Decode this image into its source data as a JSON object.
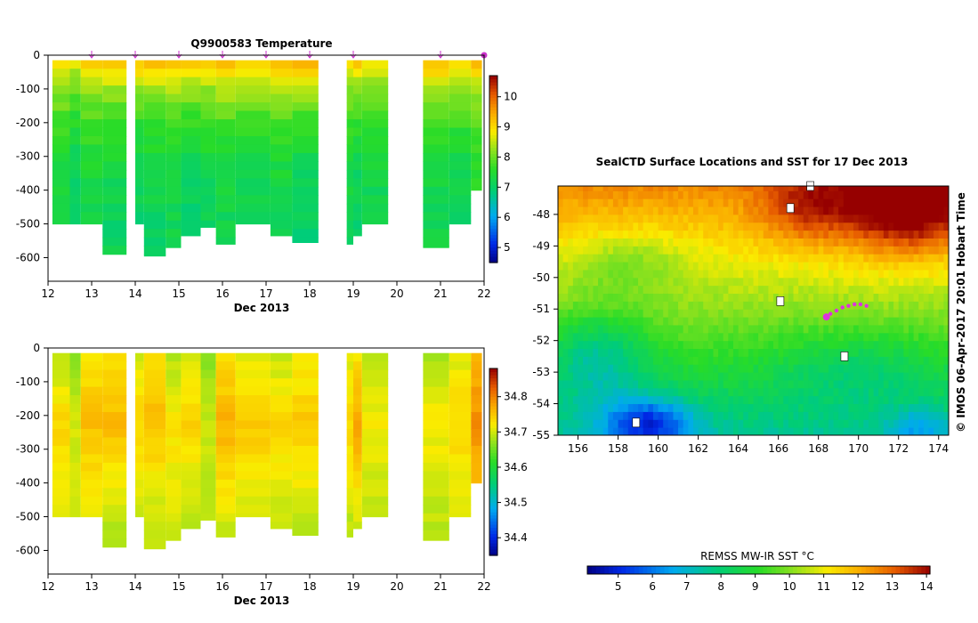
{
  "chart_data": [
    {
      "type": "heatmap",
      "title": "Q9900583  Temperature",
      "xlabel": "Dec 2013",
      "ylabel": "",
      "xlim": [
        12,
        22
      ],
      "ylim": [
        -670,
        0
      ],
      "x_ticks": [
        12,
        13,
        14,
        15,
        16,
        17,
        18,
        19,
        20,
        21,
        22
      ],
      "x_tick_labels": [
        "12",
        "13",
        "14",
        "15",
        "16",
        "17",
        "18",
        "19",
        "20",
        "21",
        "22"
      ],
      "y_ticks": [
        0,
        -100,
        -200,
        -300,
        -400,
        -500,
        -600
      ],
      "y_tick_labels": [
        "0",
        "-100",
        "-200",
        "-300",
        "-400",
        "-500",
        "-600"
      ],
      "colorbar": {
        "min": 4.5,
        "max": 10.7,
        "ticks": [
          5,
          6,
          7,
          8,
          9,
          10
        ],
        "tick_labels": [
          "5",
          "6",
          "7",
          "8",
          "9",
          "10"
        ]
      },
      "surface_markers_x": [
        13,
        14,
        15,
        16,
        17,
        18,
        19,
        21,
        22
      ],
      "marker_color": "#cc33cc",
      "grid": false,
      "profiles": [
        {
          "x0": 12.1,
          "x1": 12.5,
          "depth": 500,
          "surface": 9.4,
          "deep": 7.2,
          "jitter": 0
        },
        {
          "x0": 12.5,
          "x1": 12.75,
          "depth": 500,
          "surface": 9.0,
          "deep": 7.0,
          "jitter": 1
        },
        {
          "x0": 12.75,
          "x1": 13.25,
          "depth": 500,
          "surface": 9.5,
          "deep": 7.2,
          "jitter": 2
        },
        {
          "x0": 13.25,
          "x1": 13.8,
          "depth": 590,
          "surface": 9.6,
          "deep": 7.1,
          "jitter": 3
        },
        {
          "x0": 14.0,
          "x1": 14.2,
          "depth": 500,
          "surface": 9.6,
          "deep": 7.0,
          "jitter": 4
        },
        {
          "x0": 14.2,
          "x1": 14.7,
          "depth": 595,
          "surface": 9.6,
          "deep": 7.1,
          "jitter": 5
        },
        {
          "x0": 14.7,
          "x1": 15.05,
          "depth": 570,
          "surface": 9.5,
          "deep": 7.2,
          "jitter": 6
        },
        {
          "x0": 15.05,
          "x1": 15.5,
          "depth": 535,
          "surface": 9.6,
          "deep": 7.0,
          "jitter": 7
        },
        {
          "x0": 15.5,
          "x1": 15.85,
          "depth": 510,
          "surface": 9.5,
          "deep": 7.1,
          "jitter": 8
        },
        {
          "x0": 15.85,
          "x1": 16.3,
          "depth": 560,
          "surface": 9.7,
          "deep": 7.2,
          "jitter": 9
        },
        {
          "x0": 16.3,
          "x1": 17.1,
          "depth": 500,
          "surface": 9.6,
          "deep": 7.1,
          "jitter": 10
        },
        {
          "x0": 17.1,
          "x1": 17.6,
          "depth": 535,
          "surface": 9.6,
          "deep": 7.2,
          "jitter": 11
        },
        {
          "x0": 17.6,
          "x1": 18.2,
          "depth": 555,
          "surface": 9.8,
          "deep": 7.0,
          "jitter": 12
        },
        {
          "x0": 18.85,
          "x1": 19.0,
          "depth": 560,
          "surface": 9.3,
          "deep": 7.2,
          "jitter": 13
        },
        {
          "x0": 19.0,
          "x1": 19.2,
          "depth": 535,
          "surface": 9.5,
          "deep": 7.0,
          "jitter": 14
        },
        {
          "x0": 19.2,
          "x1": 19.8,
          "depth": 500,
          "surface": 9.2,
          "deep": 7.1,
          "jitter": 15
        },
        {
          "x0": 20.6,
          "x1": 21.2,
          "depth": 570,
          "surface": 9.6,
          "deep": 7.2,
          "jitter": 16
        },
        {
          "x0": 21.2,
          "x1": 21.7,
          "depth": 500,
          "surface": 9.4,
          "deep": 7.1,
          "jitter": 17
        },
        {
          "x0": 21.7,
          "x1": 21.95,
          "depth": 400,
          "surface": 9.5,
          "deep": 7.4,
          "jitter": 18
        }
      ]
    },
    {
      "type": "heatmap",
      "title": "",
      "xlabel": "Dec 2013",
      "ylabel": "",
      "xlim": [
        12,
        22
      ],
      "ylim": [
        -670,
        0
      ],
      "x_ticks": [
        12,
        13,
        14,
        15,
        16,
        17,
        18,
        19,
        20,
        21,
        22
      ],
      "x_tick_labels": [
        "12",
        "13",
        "14",
        "15",
        "16",
        "17",
        "18",
        "19",
        "20",
        "21",
        "22"
      ],
      "y_ticks": [
        0,
        -100,
        -200,
        -300,
        -400,
        -500,
        -600
      ],
      "y_tick_labels": [
        "0",
        "-100",
        "-200",
        "-300",
        "-400",
        "-500",
        "-600"
      ],
      "colorbar": {
        "min": 34.35,
        "max": 34.88,
        "ticks": [
          34.4,
          34.5,
          34.6,
          34.7,
          34.8
        ],
        "tick_labels": [
          "34.4",
          "34.5",
          "34.6",
          "34.7",
          "34.8"
        ]
      },
      "grid": false,
      "profiles": [
        {
          "x0": 12.1,
          "x1": 12.5,
          "surface": 34.68,
          "mid": 34.74,
          "deep": 34.71,
          "depth": 500,
          "jitter": 0
        },
        {
          "x0": 12.5,
          "x1": 12.75,
          "surface": 34.66,
          "mid": 34.7,
          "deep": 34.7,
          "depth": 500,
          "jitter": 1
        },
        {
          "x0": 12.75,
          "x1": 13.25,
          "surface": 34.72,
          "mid": 34.76,
          "deep": 34.7,
          "depth": 500,
          "jitter": 2
        },
        {
          "x0": 13.25,
          "x1": 13.8,
          "surface": 34.73,
          "mid": 34.76,
          "deep": 34.69,
          "depth": 590,
          "jitter": 3
        },
        {
          "x0": 14.0,
          "x1": 14.2,
          "surface": 34.7,
          "mid": 34.74,
          "deep": 34.7,
          "depth": 500,
          "jitter": 4
        },
        {
          "x0": 14.2,
          "x1": 14.7,
          "surface": 34.72,
          "mid": 34.76,
          "deep": 34.69,
          "depth": 595,
          "jitter": 5
        },
        {
          "x0": 14.7,
          "x1": 15.05,
          "surface": 34.68,
          "mid": 34.73,
          "deep": 34.7,
          "depth": 570,
          "jitter": 6
        },
        {
          "x0": 15.05,
          "x1": 15.5,
          "surface": 34.7,
          "mid": 34.74,
          "deep": 34.69,
          "depth": 535,
          "jitter": 7
        },
        {
          "x0": 15.5,
          "x1": 15.85,
          "surface": 34.66,
          "mid": 34.7,
          "deep": 34.69,
          "depth": 510,
          "jitter": 8
        },
        {
          "x0": 15.85,
          "x1": 16.3,
          "surface": 34.72,
          "mid": 34.77,
          "deep": 34.7,
          "depth": 560,
          "jitter": 9
        },
        {
          "x0": 16.3,
          "x1": 17.1,
          "surface": 34.7,
          "mid": 34.75,
          "deep": 34.7,
          "depth": 500,
          "jitter": 10
        },
        {
          "x0": 17.1,
          "x1": 17.6,
          "surface": 34.69,
          "mid": 34.74,
          "deep": 34.69,
          "depth": 535,
          "jitter": 11
        },
        {
          "x0": 17.6,
          "x1": 18.2,
          "surface": 34.71,
          "mid": 34.75,
          "deep": 34.69,
          "depth": 555,
          "jitter": 12
        },
        {
          "x0": 18.85,
          "x1": 19.0,
          "surface": 34.7,
          "mid": 34.74,
          "deep": 34.69,
          "depth": 560,
          "jitter": 13
        },
        {
          "x0": 19.0,
          "x1": 19.2,
          "surface": 34.72,
          "mid": 34.78,
          "deep": 34.7,
          "depth": 535,
          "jitter": 14
        },
        {
          "x0": 19.2,
          "x1": 19.8,
          "surface": 34.68,
          "mid": 34.72,
          "deep": 34.69,
          "depth": 500,
          "jitter": 15
        },
        {
          "x0": 20.6,
          "x1": 21.2,
          "surface": 34.68,
          "mid": 34.72,
          "deep": 34.69,
          "depth": 570,
          "jitter": 16
        },
        {
          "x0": 21.2,
          "x1": 21.7,
          "surface": 34.7,
          "mid": 34.74,
          "deep": 34.7,
          "depth": 500,
          "jitter": 17
        },
        {
          "x0": 21.7,
          "x1": 21.95,
          "surface": 34.76,
          "mid": 34.79,
          "deep": 34.74,
          "depth": 400,
          "jitter": 18
        }
      ]
    },
    {
      "type": "heatmap",
      "title": "SealCTD Surface Locations and SST for 17 Dec 2013",
      "xlabel": "",
      "ylabel": "",
      "xlim": [
        155,
        174.5
      ],
      "ylim": [
        -55,
        -47.1
      ],
      "x_ticks": [
        156,
        158,
        160,
        162,
        164,
        166,
        168,
        170,
        172,
        174
      ],
      "x_tick_labels": [
        "156",
        "158",
        "160",
        "162",
        "164",
        "166",
        "168",
        "170",
        "172",
        "174"
      ],
      "y_ticks": [
        -48,
        -49,
        -50,
        -51,
        -52,
        -53,
        -54,
        -55
      ],
      "y_tick_labels": [
        "-48",
        "-49",
        "-50",
        "-51",
        "-52",
        "-53",
        "-54",
        "-55"
      ],
      "colorbar": {
        "label": "REMSS MW-IR SST °C",
        "min": 4.1,
        "max": 14.1,
        "ticks": [
          5,
          6,
          7,
          8,
          9,
          10,
          11,
          12,
          13,
          14
        ],
        "tick_labels": [
          "5",
          "6",
          "7",
          "8",
          "9",
          "10",
          "11",
          "12",
          "13",
          "14"
        ],
        "placement": "bottom"
      },
      "credit": "© IMOS 06-Apr-2017 20:01 Hobart Time",
      "track_color": "#dd33dd",
      "track": [
        [
          168.4,
          -51.25
        ],
        [
          168.6,
          -51.15
        ],
        [
          168.9,
          -51.05
        ],
        [
          169.2,
          -50.95
        ],
        [
          169.5,
          -50.9
        ],
        [
          169.8,
          -50.85
        ],
        [
          170.1,
          -50.85
        ],
        [
          170.4,
          -50.9
        ]
      ],
      "islands": [
        [
          166.1,
          -50.75
        ],
        [
          169.3,
          -52.5
        ],
        [
          158.9,
          -54.6
        ],
        [
          167.6,
          -47.1
        ],
        [
          166.6,
          -47.8
        ]
      ]
    }
  ]
}
